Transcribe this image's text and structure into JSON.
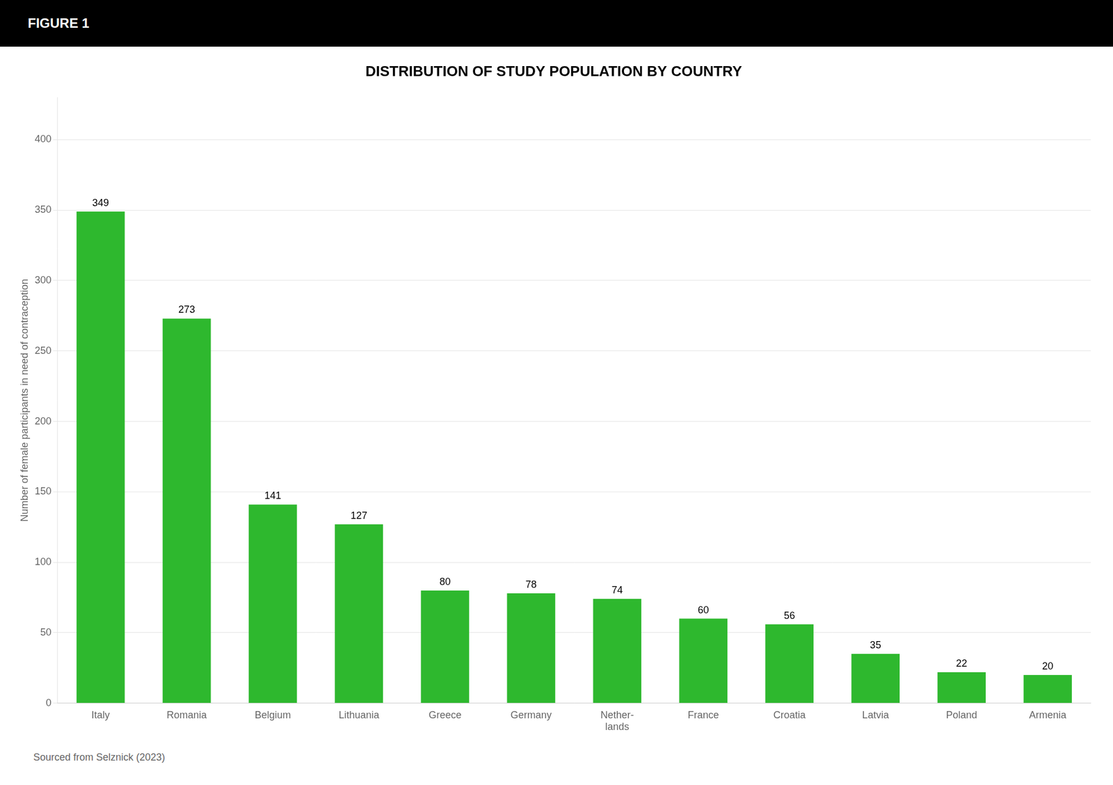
{
  "chart_data": {
    "type": "bar",
    "title": "DISTRIBUTION OF STUDY POPULATION BY COUNTRY",
    "y_label": "Number of female participants in need of contraception",
    "annotations": [
      "FIGURE 1",
      "Sourced from Selznick (2023)"
    ],
    "categories": [
      "Italy",
      "Romania",
      "Belgium",
      "Lithuania",
      "Greece",
      "Germany",
      "Nether-\nlands",
      "France",
      "Croatia",
      "Latvia",
      "Poland",
      "Armenia"
    ],
    "values": [
      349,
      273,
      141,
      127,
      80,
      78,
      74,
      60,
      56,
      35,
      22,
      20
    ],
    "color": "#2eb82e",
    "ylim": [
      0,
      430
    ],
    "yticks": [
      0,
      50,
      100,
      150,
      200,
      250,
      300,
      350,
      400
    ],
    "grid": true,
    "data_labels": true
  }
}
